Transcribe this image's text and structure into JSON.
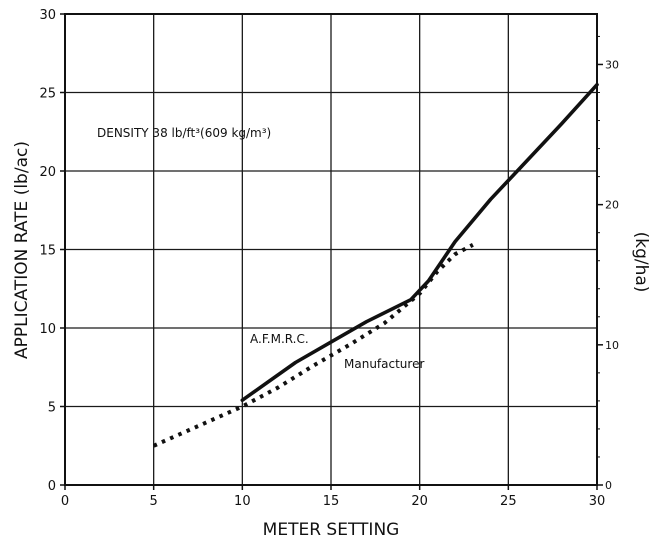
{
  "chart_data": {
    "type": "line",
    "xlabel": "METER SETTING",
    "ylabel": "APPLICATION RATE (lb/ac)",
    "y2label": "(kg/ha)",
    "xlim": [
      0,
      30
    ],
    "ylim": [
      0,
      30
    ],
    "y2lim": [
      0,
      33.6
    ],
    "x_ticks": [
      "0",
      "5",
      "10",
      "15",
      "20",
      "25",
      "30"
    ],
    "y_ticks": [
      "0",
      "5",
      "10",
      "15",
      "20",
      "25",
      "30"
    ],
    "y2_ticks": [
      "0",
      "10",
      "20",
      "30"
    ],
    "grid": true,
    "annotations": {
      "density": "DENSITY 38 lb/ft³(609 kg/m³)",
      "afmrc": "A.F.M.R.C.",
      "manufacturer": "Manufacturer"
    },
    "series": [
      {
        "name": "A.F.M.R.C.",
        "style": "solid",
        "x": [
          10,
          13,
          15,
          17,
          19.5,
          20.5,
          22,
          24,
          26,
          28,
          30
        ],
        "y": [
          5.4,
          7.8,
          9.1,
          10.4,
          11.8,
          13.0,
          15.5,
          18.2,
          20.6,
          23.0,
          25.5
        ]
      },
      {
        "name": "Manufacturer",
        "style": "dotted",
        "x": [
          5,
          6,
          8,
          10,
          12,
          14,
          16,
          18,
          20,
          21,
          22,
          23
        ],
        "y": [
          2.5,
          3.0,
          4.0,
          5.0,
          6.2,
          7.6,
          8.9,
          10.3,
          12.2,
          13.6,
          14.7,
          15.3
        ]
      }
    ]
  }
}
